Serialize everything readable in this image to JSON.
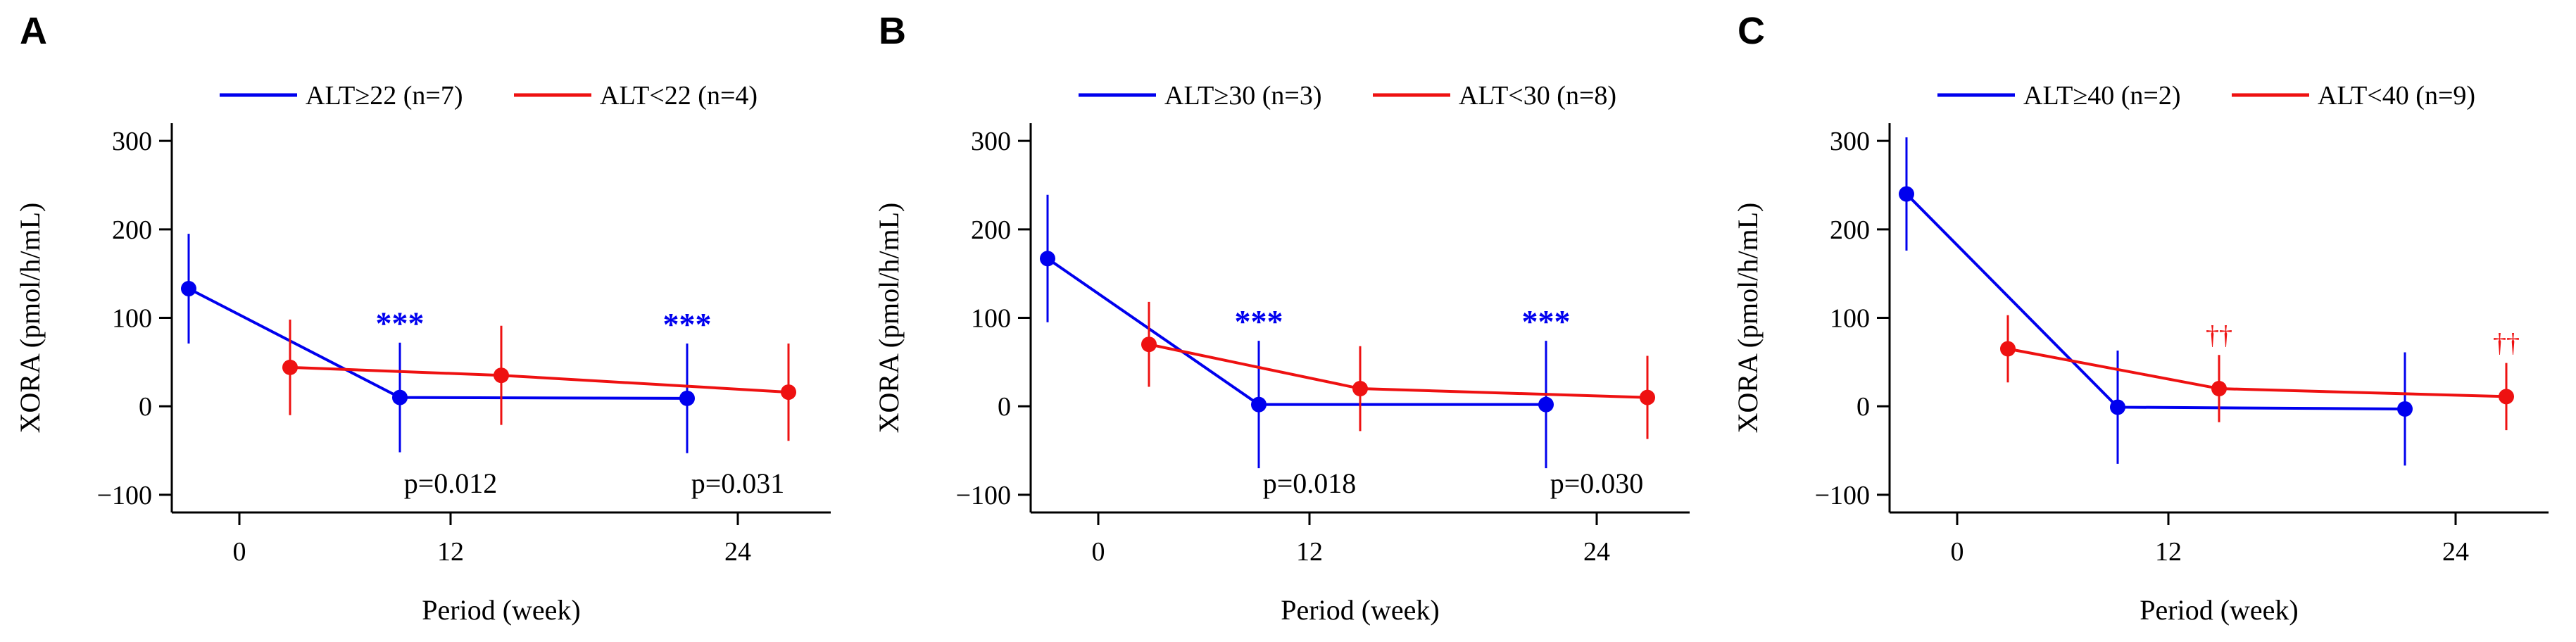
{
  "colors": {
    "blue": "#0000ee",
    "red": "#ee1111"
  },
  "chart_data": [
    {
      "type": "line",
      "panel": "A",
      "xlabel": "Period (week)",
      "ylabel": "XORA (pmol/h/mL)",
      "x_ticks": [
        0,
        12,
        24
      ],
      "y_ticks": [
        -100,
        0,
        100,
        200,
        300
      ],
      "ylim": [
        -120,
        320
      ],
      "legend": "top",
      "series": [
        {
          "name": "ALT≥22 (n=7)",
          "color": "blue",
          "x": [
            0,
            12,
            24
          ],
          "y": [
            133,
            10,
            9
          ],
          "err": [
            62,
            62,
            62
          ],
          "sig": [
            "",
            "***",
            "***"
          ]
        },
        {
          "name": "ALT<22 (n=4)",
          "color": "red",
          "x": [
            0,
            12,
            24
          ],
          "y": [
            44,
            35,
            16
          ],
          "err": [
            54,
            56,
            55
          ],
          "sig": [
            "",
            "",
            ""
          ]
        }
      ],
      "pvalues": [
        "",
        "p=0.012",
        "p=0.031"
      ]
    },
    {
      "type": "line",
      "panel": "B",
      "xlabel": "Period (week)",
      "ylabel": "XORA (pmol/h/mL)",
      "x_ticks": [
        0,
        12,
        24
      ],
      "y_ticks": [
        -100,
        0,
        100,
        200,
        300
      ],
      "ylim": [
        -120,
        320
      ],
      "legend": "top",
      "series": [
        {
          "name": "ALT≥30 (n=3)",
          "color": "blue",
          "x": [
            0,
            12,
            24
          ],
          "y": [
            167,
            2,
            2
          ],
          "err": [
            72,
            72,
            72
          ],
          "sig": [
            "",
            "***",
            "***"
          ]
        },
        {
          "name": "ALT<30 (n=8)",
          "color": "red",
          "x": [
            0,
            12,
            24
          ],
          "y": [
            70,
            20,
            10
          ],
          "err": [
            48,
            48,
            47
          ],
          "sig": [
            "",
            "",
            ""
          ]
        }
      ],
      "pvalues": [
        "",
        "p=0.018",
        "p=0.030"
      ]
    },
    {
      "type": "line",
      "panel": "C",
      "xlabel": "Period (week)",
      "ylabel": "XORA (pmol/h/mL)",
      "x_ticks": [
        0,
        12,
        24
      ],
      "y_ticks": [
        -100,
        0,
        100,
        200,
        300
      ],
      "ylim": [
        -120,
        320
      ],
      "legend": "top",
      "series": [
        {
          "name": "ALT≥40 (n=2)",
          "color": "blue",
          "x": [
            0,
            12,
            24
          ],
          "y": [
            240,
            -1,
            -3
          ],
          "err": [
            64,
            64,
            64
          ],
          "sig": [
            "",
            "",
            ""
          ]
        },
        {
          "name": "ALT<40 (n=9)",
          "color": "red",
          "x": [
            0,
            12,
            24
          ],
          "y": [
            65,
            20,
            11
          ],
          "err": [
            38,
            38,
            38
          ],
          "sig": [
            "",
            "††",
            "††"
          ]
        }
      ],
      "pvalues": [
        "",
        "",
        ""
      ]
    }
  ]
}
